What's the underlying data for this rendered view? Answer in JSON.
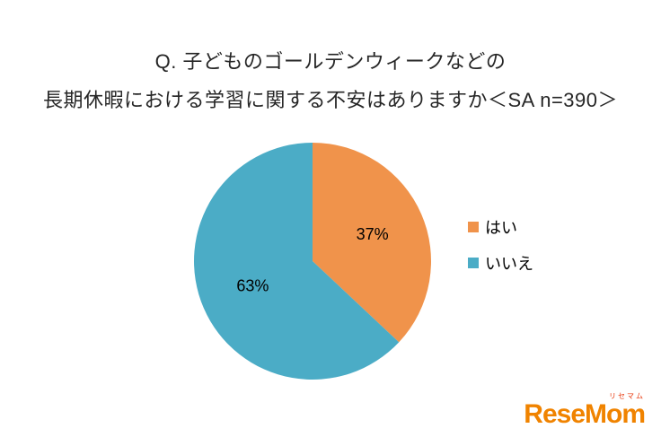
{
  "title": {
    "line1": "Q. 子どものゴールデンウィークなどの",
    "line2": "長期休暇における学習に関する不安はありますか＜SA n=390＞"
  },
  "chart_data": {
    "type": "pie",
    "title": "子どものゴールデンウィークなどの長期休暇における学習に関する不安はありますか",
    "sample_note": "SA n=390",
    "labels": [
      "はい",
      "いいえ"
    ],
    "values": [
      37,
      63
    ],
    "value_labels": [
      "37%",
      "63%"
    ],
    "colors": [
      "#F0934B",
      "#4BACC6"
    ],
    "start_angle_deg": -90,
    "direction": "clockwise",
    "legend_position": "right",
    "label_color": "#000000"
  },
  "logo": {
    "text": "ReseMom",
    "ruby": "リセマム",
    "color": "#F08300",
    "ruby_color": "#E8380D"
  }
}
